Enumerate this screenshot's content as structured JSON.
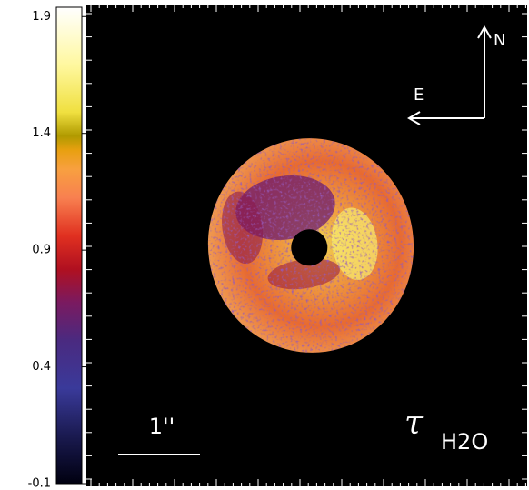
{
  "chart_data": {
    "type": "colorbar-image",
    "colorbar": {
      "ylim": [
        -0.1,
        1.94
      ],
      "yticks": [
        1.9,
        1.4,
        0.9,
        0.4,
        -0.1
      ]
    },
    "annotations": {
      "scale": "1''",
      "east": "E",
      "north": "N",
      "symbol": "τ",
      "subscript": "H2O"
    }
  }
}
